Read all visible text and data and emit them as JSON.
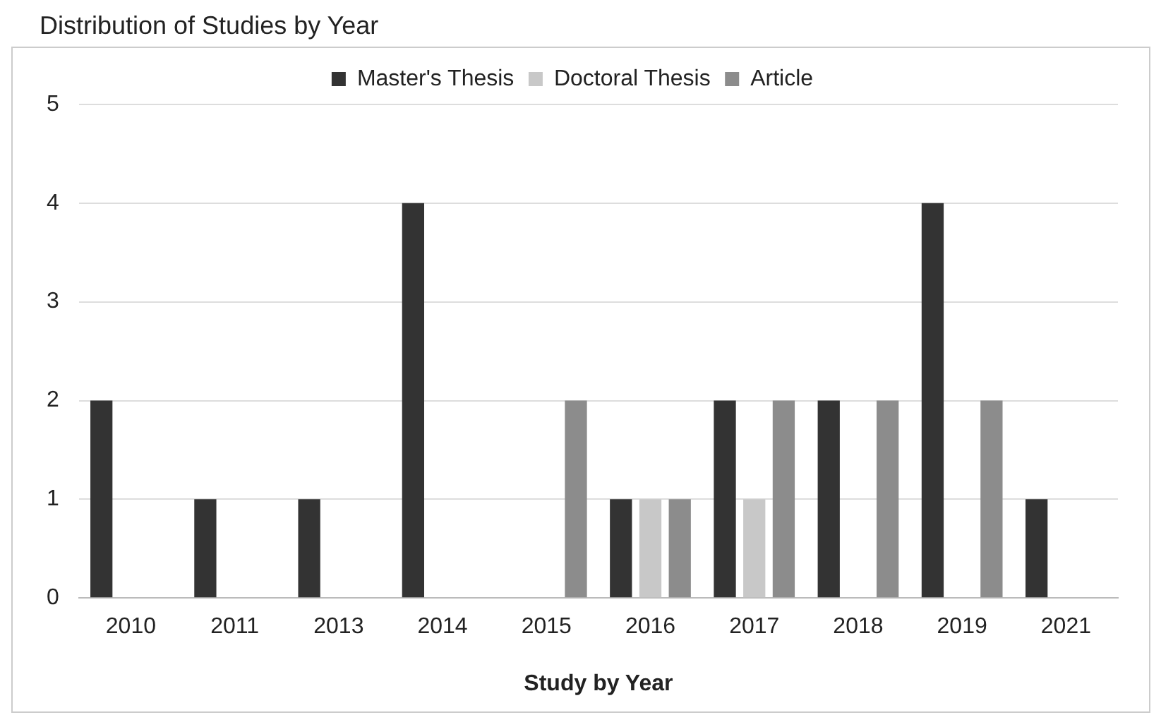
{
  "chart_data": {
    "type": "bar",
    "title": "Distribution of Studies by Year",
    "xlabel": "Study by Year",
    "categories": [
      "2010",
      "2011",
      "2013",
      "2014",
      "2015",
      "2016",
      "2017",
      "2018",
      "2019",
      "2021"
    ],
    "series": [
      {
        "name": "Master's Thesis",
        "color": "#333333",
        "values": [
          2,
          1,
          1,
          4,
          0,
          1,
          2,
          2,
          4,
          1
        ]
      },
      {
        "name": "Doctoral Thesis",
        "color": "#c8c8c8",
        "values": [
          0,
          0,
          0,
          0,
          0,
          1,
          1,
          0,
          0,
          0
        ]
      },
      {
        "name": "Article",
        "color": "#8c8c8c",
        "values": [
          0,
          0,
          0,
          0,
          2,
          1,
          2,
          2,
          2,
          0
        ]
      }
    ],
    "ylim": [
      0,
      5
    ],
    "yticks": [
      0,
      1,
      2,
      3,
      4,
      5
    ],
    "grid": "y",
    "legend": "top"
  }
}
